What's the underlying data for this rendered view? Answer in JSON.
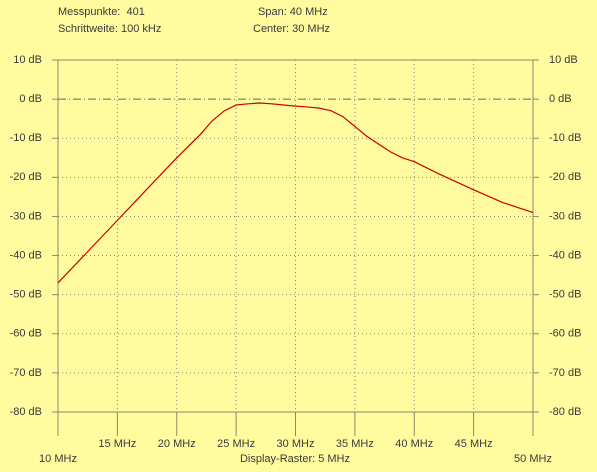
{
  "chart_data": {
    "type": "line",
    "annotations": [
      "Messpunkte:  401",
      "Schrittweite: 100 kHz",
      "Span: 40 MHz",
      "Center: 30 MHz",
      "Display-Raster: 5 MHz"
    ],
    "series": [
      {
        "color": "#cc0000",
        "x": [
          10,
          12.5,
          15,
          17.5,
          20,
          22,
          23,
          24,
          25,
          26,
          27,
          28,
          29,
          30,
          31,
          32,
          33,
          34,
          35,
          36,
          37,
          38,
          39,
          40,
          42,
          45,
          47.5,
          50
        ],
        "values": [
          -47,
          -39,
          -31,
          -23,
          -15,
          -9,
          -5.5,
          -3,
          -1.5,
          -1.2,
          -1,
          -1.2,
          -1.5,
          -1.8,
          -2,
          -2.3,
          -3,
          -4.5,
          -7,
          -9.5,
          -11.5,
          -13.5,
          -15,
          -16,
          -19,
          -23.2,
          -26.5,
          -29
        ]
      }
    ],
    "xlim": [
      10,
      50
    ],
    "xticks": [
      {
        "value": 10,
        "label": "10 MHz"
      },
      {
        "value": 15,
        "label": "15 MHz"
      },
      {
        "value": 20,
        "label": "20 MHz"
      },
      {
        "value": 25,
        "label": "25 MHz"
      },
      {
        "value": 30,
        "label": "30 MHz"
      },
      {
        "value": 35,
        "label": "35 MHz"
      },
      {
        "value": 40,
        "label": "40 MHz"
      },
      {
        "value": 45,
        "label": "45 MHz"
      },
      {
        "value": 50,
        "label": "50 MHz"
      }
    ],
    "ylim": [
      -80,
      10
    ],
    "yticks": [
      {
        "value": 10,
        "label": "10 dB"
      },
      {
        "value": 0,
        "label": "0 dB"
      },
      {
        "value": -10,
        "label": "-10 dB"
      },
      {
        "value": -20,
        "label": "-20 dB"
      },
      {
        "value": -30,
        "label": "-30 dB"
      },
      {
        "value": -40,
        "label": "-40 dB"
      },
      {
        "value": -50,
        "label": "-50 dB"
      },
      {
        "value": -60,
        "label": "-60 dB"
      },
      {
        "value": -70,
        "label": "-70 dB"
      },
      {
        "value": -80,
        "label": "-80 dB"
      }
    ],
    "grid": true
  }
}
